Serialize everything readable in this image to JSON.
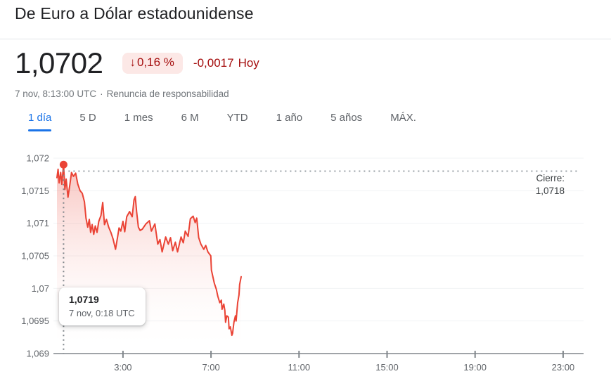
{
  "header": {
    "title": "De Euro a Dólar estadounidense"
  },
  "quote": {
    "price": "1,0702",
    "change_arrow": "↓",
    "change_percent": "0,16 %",
    "change_absolute": "-0,0017",
    "change_period": "Hoy",
    "timestamp": "7 nov, 8:13:00 UTC",
    "separator": "·",
    "disclaimer": "Renuncia de responsabilidad"
  },
  "tabs": {
    "items": [
      "1 día",
      "5 D",
      "1 mes",
      "6 M",
      "YTD",
      "1 año",
      "5 años",
      "MÁX."
    ],
    "active": "1 día",
    "active_index": 0
  },
  "chart": {
    "tooltip": {
      "value": "1,0719",
      "time": "7 nov, 0:18 UTC"
    },
    "close_label": "Cierre:",
    "close_value": "1,0718"
  },
  "colors": {
    "accent_blue": "#1a73e8",
    "negative_text": "#a50e0e",
    "negative_badge_bg": "#fce8e6",
    "line_red": "#ea4335",
    "axis_gray": "#80868b",
    "grid_gray": "#f1f3f4",
    "dotted_gray": "#9aa0a6"
  },
  "chart_data": {
    "type": "area",
    "title": "De Euro a Dólar estadounidense — 1 día",
    "x_unit": "hours UTC, 7 nov",
    "xlim": [
      0,
      24
    ],
    "ylim": [
      1.069,
      1.072
    ],
    "grid": true,
    "x_ticks": [
      "3:00",
      "7:00",
      "11:00",
      "15:00",
      "19:00",
      "23:00"
    ],
    "x_tick_values": [
      3,
      7,
      11,
      15,
      19,
      23
    ],
    "y_ticks": [
      "1,072",
      "1,0715",
      "1,071",
      "1,0705",
      "1,07",
      "1,0695",
      "1,069"
    ],
    "y_tick_values": [
      1.072,
      1.0715,
      1.071,
      1.0705,
      1.07,
      1.0695,
      1.069
    ],
    "previous_close": 1.0718,
    "close_label": "Cierre:",
    "close_value": "1,0718",
    "marker": {
      "x": 0.3,
      "value": 1.0719,
      "label": "1,0719",
      "time": "7 nov, 0:18 UTC"
    },
    "line_color": "#ea4335",
    "x": [
      0.0,
      0.05,
      0.1,
      0.17,
      0.22,
      0.3,
      0.36,
      0.42,
      0.5,
      0.58,
      0.66,
      0.75,
      0.85,
      0.95,
      1.05,
      1.15,
      1.25,
      1.32,
      1.4,
      1.47,
      1.53,
      1.6,
      1.67,
      1.74,
      1.82,
      1.9,
      2.0,
      2.08,
      2.16,
      2.25,
      2.35,
      2.45,
      2.55,
      2.66,
      2.75,
      2.82,
      2.9,
      3.0,
      3.08,
      3.17,
      3.3,
      3.42,
      3.5,
      3.56,
      3.62,
      3.7,
      3.78,
      3.88,
      4.04,
      4.2,
      4.29,
      4.45,
      4.58,
      4.68,
      4.78,
      4.94,
      5.06,
      5.16,
      5.26,
      5.38,
      5.48,
      5.64,
      5.74,
      5.83,
      5.96,
      6.06,
      6.19,
      6.28,
      6.35,
      6.44,
      6.54,
      6.67,
      6.76,
      6.86,
      6.99,
      7.02,
      7.15,
      7.24,
      7.31,
      7.4,
      7.47,
      7.5,
      7.58,
      7.63,
      7.66,
      7.72,
      7.79,
      7.82,
      7.88,
      7.95,
      7.98,
      8.04,
      8.11,
      8.14,
      8.21,
      8.27,
      8.3,
      8.37
    ],
    "values": [
      1.0717,
      1.07183,
      1.07162,
      1.07178,
      1.0716,
      1.0719,
      1.07152,
      1.07168,
      1.0714,
      1.07158,
      1.07178,
      1.07172,
      1.07177,
      1.0716,
      1.0715,
      1.07146,
      1.07133,
      1.07108,
      1.07094,
      1.07106,
      1.07086,
      1.07098,
      1.07083,
      1.07096,
      1.07086,
      1.07103,
      1.07112,
      1.07132,
      1.07098,
      1.07106,
      1.07094,
      1.07086,
      1.07076,
      1.0706,
      1.07078,
      1.07093,
      1.07088,
      1.07103,
      1.07087,
      1.0711,
      1.07118,
      1.0711,
      1.07136,
      1.07141,
      1.07118,
      1.07094,
      1.07089,
      1.07091,
      1.07099,
      1.07104,
      1.07088,
      1.07099,
      1.07068,
      1.07075,
      1.07056,
      1.07079,
      1.07068,
      1.07078,
      1.07058,
      1.07071,
      1.07056,
      1.07079,
      1.0707,
      1.07088,
      1.0708,
      1.07107,
      1.07111,
      1.07101,
      1.07108,
      1.07078,
      1.07068,
      1.0706,
      1.07066,
      1.07056,
      1.0705,
      1.07028,
      1.07008,
      1.06999,
      1.06988,
      1.06978,
      1.06982,
      1.06968,
      1.06976,
      1.06966,
      1.06948,
      1.06958,
      1.06956,
      1.06938,
      1.06941,
      1.06928,
      1.06931,
      1.06948,
      1.06958,
      1.0695,
      1.06978,
      1.0699,
      1.07006,
      1.07018
    ]
  }
}
